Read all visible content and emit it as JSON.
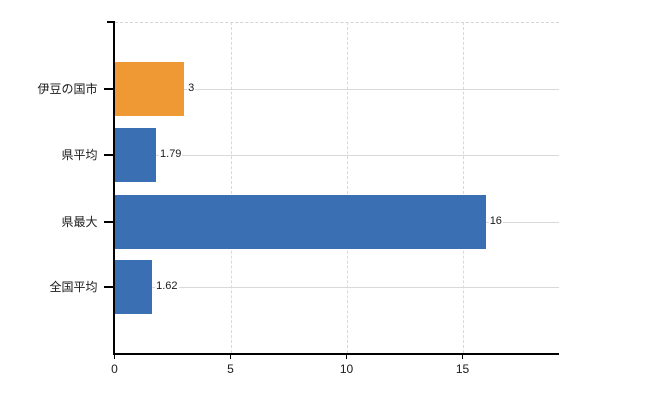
{
  "chart_data": {
    "type": "bar",
    "orientation": "horizontal",
    "title": "",
    "xlabel": "",
    "ylabel": "",
    "categories": [
      "伊豆の国市",
      "県平均",
      "県最大",
      "全国平均"
    ],
    "values": [
      3,
      1.79,
      16,
      1.62
    ],
    "value_labels": [
      "3",
      "1.79",
      "16",
      "1.62"
    ],
    "bar_colors": [
      "#ee9933",
      "#3b6fb3",
      "#3b6fb3",
      "#3b6fb3"
    ],
    "x_ticks": [
      0,
      5,
      10,
      15
    ],
    "x_tick_labels": [
      "0",
      "5",
      "10",
      "15"
    ],
    "xlim": [
      0,
      19.2
    ],
    "grid": true,
    "legend": false
  },
  "colors": {
    "highlight_bar": "#ee9933",
    "default_bar": "#3b6fb3",
    "gridline": "#d9d9d9",
    "axis": "#000000",
    "text": "#1a1a1a",
    "background": "#ffffff"
  }
}
